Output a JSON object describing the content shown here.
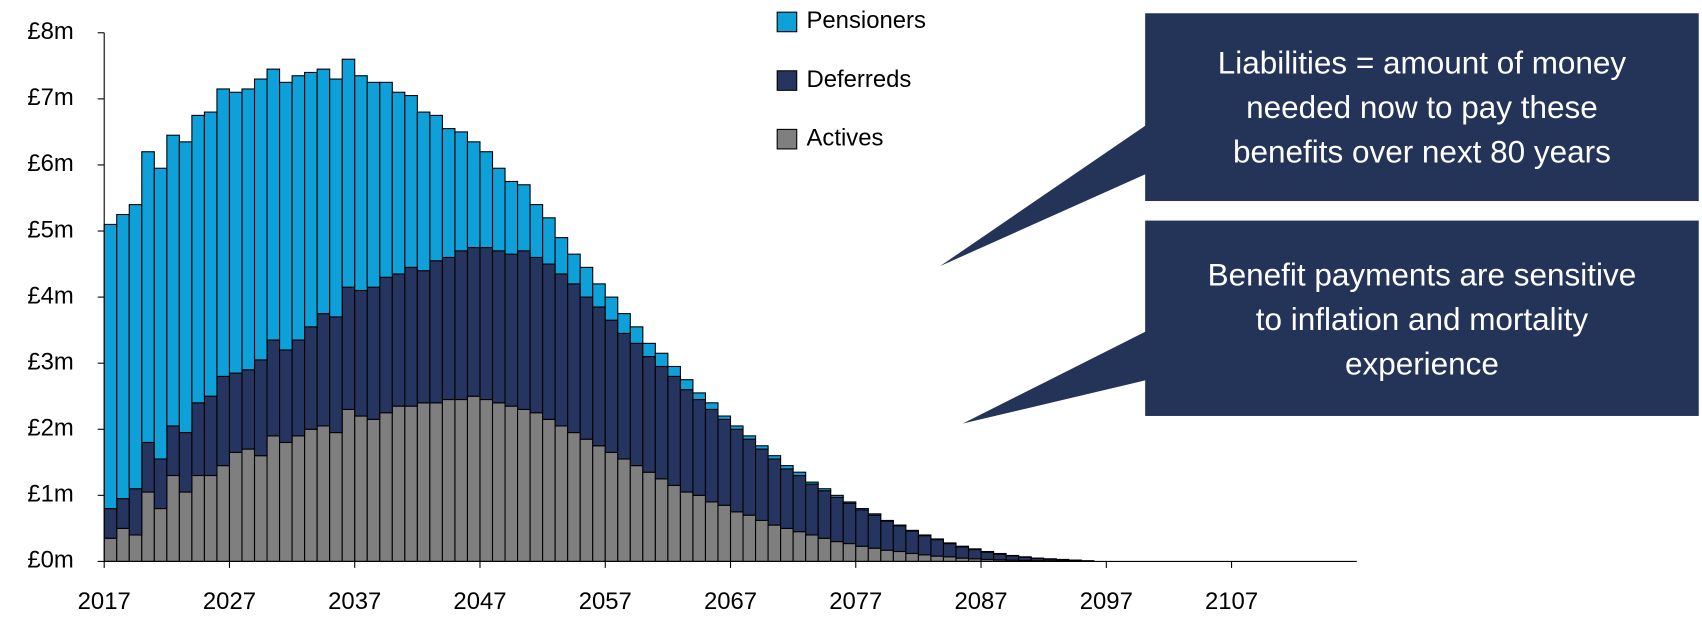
{
  "chart_data": {
    "type": "stacked-bar",
    "x": [
      2017,
      2018,
      2019,
      2020,
      2021,
      2022,
      2023,
      2024,
      2025,
      2026,
      2027,
      2028,
      2029,
      2030,
      2031,
      2032,
      2033,
      2034,
      2035,
      2036,
      2037,
      2038,
      2039,
      2040,
      2041,
      2042,
      2043,
      2044,
      2045,
      2046,
      2047,
      2048,
      2049,
      2050,
      2051,
      2052,
      2053,
      2054,
      2055,
      2056,
      2057,
      2058,
      2059,
      2060,
      2061,
      2062,
      2063,
      2064,
      2065,
      2066,
      2067,
      2068,
      2069,
      2070,
      2071,
      2072,
      2073,
      2074,
      2075,
      2076,
      2077,
      2078,
      2079,
      2080,
      2081,
      2082,
      2083,
      2084,
      2085,
      2086,
      2087,
      2088,
      2089,
      2090,
      2091,
      2092,
      2093,
      2094,
      2095
    ],
    "series": [
      {
        "name": "Actives",
        "color": "#7f7f7f",
        "values": [
          0.35,
          0.5,
          0.4,
          1.05,
          0.8,
          1.3,
          1.05,
          1.3,
          1.3,
          1.45,
          1.65,
          1.7,
          1.6,
          1.9,
          1.8,
          1.9,
          2.0,
          2.05,
          1.95,
          2.3,
          2.2,
          2.15,
          2.25,
          2.35,
          2.35,
          2.4,
          2.4,
          2.45,
          2.45,
          2.5,
          2.45,
          2.4,
          2.35,
          2.3,
          2.25,
          2.15,
          2.05,
          1.95,
          1.85,
          1.75,
          1.65,
          1.55,
          1.45,
          1.35,
          1.25,
          1.15,
          1.05,
          1.0,
          0.9,
          0.85,
          0.75,
          0.7,
          0.62,
          0.55,
          0.5,
          0.45,
          0.4,
          0.35,
          0.3,
          0.27,
          0.23,
          0.2,
          0.17,
          0.15,
          0.12,
          0.1,
          0.08,
          0.07,
          0.05,
          0.04,
          0.03,
          0.025,
          0.02,
          0.015,
          0.01,
          0.008,
          0.006,
          0.004,
          0.002
        ]
      },
      {
        "name": "Deferreds",
        "color": "#253560",
        "values": [
          0.45,
          0.45,
          0.7,
          0.75,
          0.75,
          0.75,
          0.9,
          1.1,
          1.2,
          1.35,
          1.2,
          1.2,
          1.45,
          1.45,
          1.4,
          1.45,
          1.55,
          1.7,
          1.75,
          1.85,
          1.9,
          2.0,
          2.05,
          2.0,
          2.1,
          2.0,
          2.15,
          2.15,
          2.25,
          2.25,
          2.3,
          2.3,
          2.3,
          2.4,
          2.35,
          2.35,
          2.3,
          2.25,
          2.15,
          2.1,
          2.0,
          1.9,
          1.85,
          1.75,
          1.7,
          1.65,
          1.55,
          1.45,
          1.4,
          1.3,
          1.25,
          1.15,
          1.08,
          1.0,
          0.9,
          0.85,
          0.77,
          0.72,
          0.67,
          0.61,
          0.55,
          0.5,
          0.44,
          0.39,
          0.34,
          0.29,
          0.25,
          0.2,
          0.17,
          0.14,
          0.11,
          0.085,
          0.065,
          0.05,
          0.035,
          0.027,
          0.019,
          0.013,
          0.006
        ]
      },
      {
        "name": "Pensioners",
        "color": "#0ea0d8",
        "values": [
          4.3,
          4.3,
          4.3,
          4.4,
          4.4,
          4.4,
          4.4,
          4.35,
          4.3,
          4.35,
          4.25,
          4.25,
          4.25,
          4.1,
          4.05,
          4.0,
          3.85,
          3.7,
          3.6,
          3.45,
          3.25,
          3.1,
          2.95,
          2.75,
          2.6,
          2.4,
          2.2,
          1.95,
          1.8,
          1.6,
          1.45,
          1.25,
          1.1,
          1.0,
          0.8,
          0.7,
          0.55,
          0.45,
          0.45,
          0.35,
          0.35,
          0.3,
          0.25,
          0.2,
          0.2,
          0.15,
          0.15,
          0.1,
          0.1,
          0.05,
          0.05,
          0.05,
          0.05,
          0.05,
          0.05,
          0.05,
          0.03,
          0.03,
          0.03,
          0.02,
          0.02,
          0.02,
          0.01,
          0.01,
          0.01,
          0.01,
          0.01,
          0.01,
          0.01,
          0.01,
          0.01,
          0.01,
          0.005,
          0.005,
          0.005,
          0.005,
          0.005,
          0.003,
          0.002
        ]
      }
    ],
    "xlim": [
      2017,
      2117
    ],
    "xticks": [
      2017,
      2027,
      2037,
      2047,
      2057,
      2067,
      2077,
      2087,
      2097,
      2107
    ],
    "ylim": [
      0,
      8
    ],
    "yticks": [
      {
        "value": 0,
        "label": "£0m"
      },
      {
        "value": 1,
        "label": "£1m"
      },
      {
        "value": 2,
        "label": "£2m"
      },
      {
        "value": 3,
        "label": "£3m"
      },
      {
        "value": 4,
        "label": "£4m"
      },
      {
        "value": 5,
        "label": "£5m"
      },
      {
        "value": 6,
        "label": "£6m"
      },
      {
        "value": 7,
        "label": "£7m"
      },
      {
        "value": 8,
        "label": "£8m"
      }
    ],
    "legend": "top",
    "annotations": [
      {
        "lines": [
          "Liabilities = amount of money",
          "needed now to pay these",
          "benefits over next 80 years"
        ]
      },
      {
        "lines": [
          "Benefit payments are sensitive",
          "to inflation and mortality",
          "experience"
        ]
      }
    ]
  }
}
